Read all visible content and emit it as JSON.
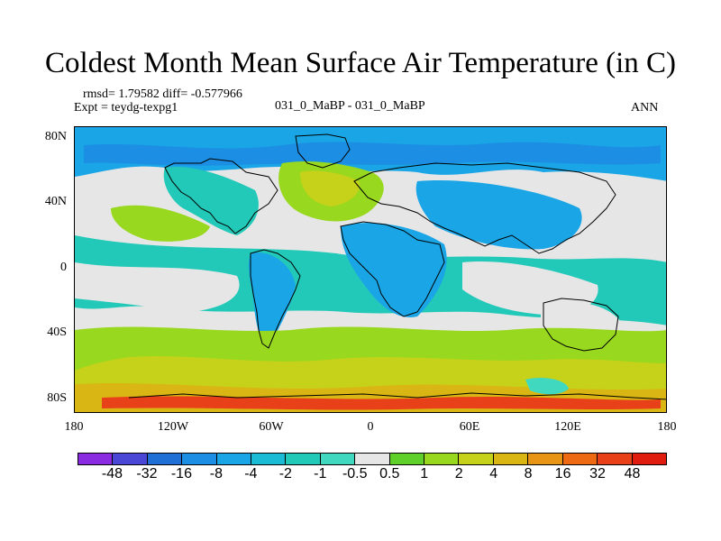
{
  "title": "Coldest Month Mean Surface Air Temperature (in C)",
  "stats": "rmsd= 1.79582 diff= -0.577966",
  "experiment": "Expt = teydg-texpg1",
  "comparison": "031_0_MaBP - 031_0_MaBP",
  "season": "ANN",
  "y_ticks": [
    "80N",
    "40N",
    "0",
    "40S",
    "80S"
  ],
  "x_ticks": [
    "180",
    "120W",
    "60W",
    "0",
    "60E",
    "120E",
    "180"
  ],
  "colorbar": {
    "labels": [
      "-48",
      "-32",
      "-16",
      "-8",
      "-4",
      "-2",
      "-1",
      "-0.5",
      "0.5",
      "1",
      "2",
      "4",
      "8",
      "16",
      "32",
      "48"
    ],
    "colors": [
      "#8a2be2",
      "#4b47d6",
      "#1f6fd6",
      "#1c8ee3",
      "#1aa6e6",
      "#1bbbd6",
      "#22c9b8",
      "#40d9c0",
      "#e6e6e6",
      "#5fcf2a",
      "#98d81f",
      "#c6d21a",
      "#d9b613",
      "#e89414",
      "#ee6a12",
      "#e8411a",
      "#e01c10"
    ]
  },
  "colors": {
    "bg": "#e6e6e6",
    "cool1": "#1aa6e6",
    "cool2": "#22c9b8",
    "cool3": "#1c8ee3",
    "cool4": "#40d9c0",
    "warm1": "#98d81f",
    "warm2": "#c6d21a",
    "warm3": "#d9b613",
    "warm4": "#e8411a"
  }
}
